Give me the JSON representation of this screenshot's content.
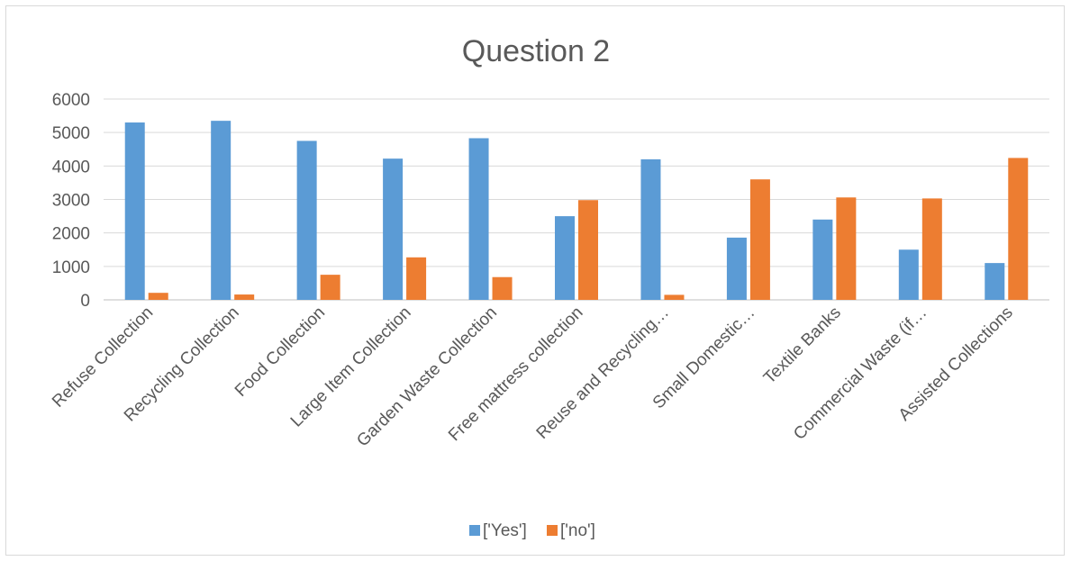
{
  "chart_data": {
    "type": "bar",
    "title": "Question 2",
    "xlabel": "",
    "ylabel": "",
    "ylim": [
      0,
      6000
    ],
    "yticks": [
      0,
      1000,
      2000,
      3000,
      4000,
      5000,
      6000
    ],
    "grid": true,
    "legend_position": "bottom",
    "categories": [
      "Refuse Collection",
      "Recycling Collection",
      "Food Collection",
      "Large Item Collection",
      "Garden Waste Collection",
      "Free mattress collection",
      "Reuse and Recycling…",
      "Small Domestic…",
      "Textile Banks",
      "Commercial Waste (if…",
      "Assisted Collections"
    ],
    "series": [
      {
        "name": "['Yes']",
        "color": "#5b9bd5",
        "values": [
          5300,
          5350,
          4750,
          4220,
          4830,
          2500,
          4200,
          1860,
          2400,
          1500,
          1100
        ]
      },
      {
        "name": "['no']",
        "color": "#ed7d31",
        "values": [
          210,
          160,
          750,
          1270,
          680,
          2980,
          150,
          3600,
          3060,
          3030,
          4240
        ]
      }
    ]
  }
}
